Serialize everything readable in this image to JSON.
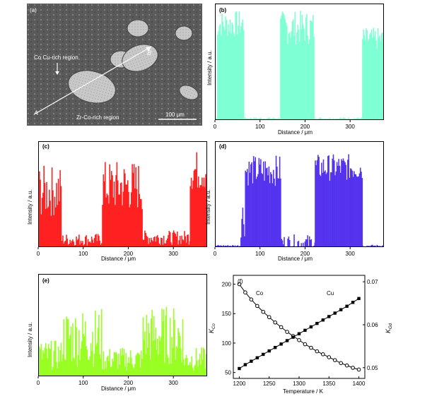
{
  "panel_a": {
    "label": "(a)",
    "annotations": {
      "cu_region": "Co Cu-rich region",
      "zr_region": "Zr-Co-rich region",
      "point_a": "A",
      "point_b": "B",
      "scale": "100 μm"
    }
  },
  "chart_data": [
    {
      "id": "b",
      "label": "(b)",
      "type": "bar",
      "color": "#7fffd4",
      "xlabel": "Distance / μm",
      "ylabel": "Intensity / a.u.",
      "xlim": [
        0,
        375
      ],
      "ylim": [
        0,
        1
      ],
      "xticks": [
        0,
        100,
        200,
        300
      ],
      "segments": [
        {
          "range": [
            0,
            3
          ],
          "level": 0.02
        },
        {
          "range": [
            3,
            62
          ],
          "level": 0.85,
          "spread": 0.12
        },
        {
          "range": [
            62,
            143
          ],
          "level": 0.02
        },
        {
          "range": [
            143,
            218
          ],
          "level": 0.82,
          "spread": 0.15
        },
        {
          "range": [
            218,
            325
          ],
          "level": 0.02
        },
        {
          "range": [
            325,
            375
          ],
          "level": 0.72,
          "spread": 0.1
        }
      ]
    },
    {
      "id": "c",
      "label": "(c)",
      "type": "bar",
      "color": "#ff2020",
      "xlabel": "Distance / μm",
      "ylabel": "Intensity / a.u.",
      "xlim": [
        0,
        375
      ],
      "ylim": [
        0,
        1
      ],
      "xticks": [
        0,
        100,
        200,
        300
      ],
      "segments": [
        {
          "range": [
            0,
            50
          ],
          "level": 0.55,
          "spread": 0.25
        },
        {
          "range": [
            50,
            140
          ],
          "level": 0.08,
          "spread": 0.06
        },
        {
          "range": [
            140,
            230
          ],
          "level": 0.6,
          "spread": 0.25
        },
        {
          "range": [
            230,
            335
          ],
          "level": 0.1,
          "spread": 0.07
        },
        {
          "range": [
            335,
            375
          ],
          "level": 0.75,
          "spread": 0.2
        }
      ]
    },
    {
      "id": "d",
      "label": "(d)",
      "type": "bar",
      "color": "#5533ee",
      "xlabel": "Distance / μm",
      "ylabel": "Intensity / a.u.",
      "xlim": [
        0,
        375
      ],
      "ylim": [
        0,
        1
      ],
      "xticks": [
        0,
        100,
        200,
        300
      ],
      "segments": [
        {
          "range": [
            0,
            55
          ],
          "level": 0.02
        },
        {
          "range": [
            55,
            65
          ],
          "level": 0.3,
          "spread": 0.2
        },
        {
          "range": [
            65,
            145
          ],
          "level": 0.75,
          "spread": 0.15
        },
        {
          "range": [
            145,
            220
          ],
          "level": 0.05,
          "spread": 0.08
        },
        {
          "range": [
            220,
            325
          ],
          "level": 0.78,
          "spread": 0.13
        },
        {
          "range": [
            325,
            375
          ],
          "level": 0.02
        }
      ]
    },
    {
      "id": "e",
      "label": "(e)",
      "type": "bar",
      "color": "#99ff22",
      "xlabel": "Distance / μm",
      "ylabel": "Intensity / a.u.",
      "xlim": [
        0,
        375
      ],
      "ylim": [
        0,
        1
      ],
      "xticks": [
        0,
        100,
        200,
        300
      ],
      "segments": [
        {
          "range": [
            0,
            50
          ],
          "level": 0.22,
          "spread": 0.15
        },
        {
          "range": [
            50,
            140
          ],
          "level": 0.4,
          "spread": 0.3
        },
        {
          "range": [
            140,
            230
          ],
          "level": 0.18,
          "spread": 0.12
        },
        {
          "range": [
            230,
            320
          ],
          "level": 0.42,
          "spread": 0.3
        },
        {
          "range": [
            320,
            375
          ],
          "level": 0.18,
          "spread": 0.12
        }
      ]
    },
    {
      "id": "f",
      "label": "(f)",
      "type": "line",
      "xlabel": "Temperature / K",
      "ylabel_left": "K_Co",
      "ylabel_right": "K_Gd",
      "xlim": [
        1190,
        1410
      ],
      "ylim_left": [
        40,
        215
      ],
      "ylim_right": [
        0.0475,
        0.0715
      ],
      "xticks": [
        1200,
        1250,
        1300,
        1350,
        1400
      ],
      "yticks_left": [
        50,
        100,
        150,
        200
      ],
      "yticks_right": [
        0.05,
        0.06,
        0.07
      ],
      "series": [
        {
          "name": "Co",
          "axis": "left",
          "marker": "circle-open",
          "x": [
            1200,
            1210,
            1220,
            1230,
            1240,
            1250,
            1260,
            1270,
            1280,
            1290,
            1300,
            1310,
            1320,
            1330,
            1340,
            1350,
            1360,
            1370,
            1380,
            1390,
            1400
          ],
          "y": [
            200,
            186,
            174,
            163,
            153,
            144,
            135,
            127,
            119,
            112,
            105,
            98,
            92,
            86,
            81,
            76,
            71,
            66,
            62,
            58,
            55
          ]
        },
        {
          "name": "Cu",
          "axis": "right",
          "marker": "square-filled",
          "x": [
            1200,
            1210,
            1220,
            1230,
            1240,
            1250,
            1260,
            1270,
            1280,
            1290,
            1300,
            1310,
            1320,
            1330,
            1340,
            1350,
            1360,
            1370,
            1380,
            1390,
            1400
          ],
          "y": [
            0.0498,
            0.0507,
            0.0515,
            0.0523,
            0.0531,
            0.0539,
            0.0547,
            0.0555,
            0.0563,
            0.0571,
            0.0579,
            0.0587,
            0.0595,
            0.0603,
            0.0611,
            0.0619,
            0.0627,
            0.0635,
            0.0643,
            0.0652,
            0.0661
          ]
        }
      ]
    }
  ]
}
